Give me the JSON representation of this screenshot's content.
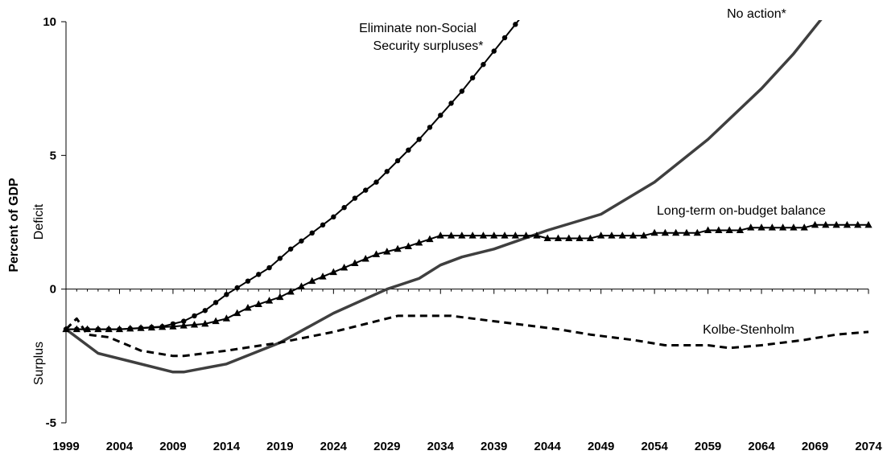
{
  "chart_data": {
    "type": "line",
    "ylabel": "Percent of GDP",
    "side_labels": {
      "upper": "Deficit",
      "lower": "Surplus"
    },
    "xlim": [
      1999,
      2074
    ],
    "ylim": [
      -5,
      10
    ],
    "x_ticks": [
      "1999",
      "2004",
      "2009",
      "2014",
      "2019",
      "2024",
      "2029",
      "2034",
      "2039",
      "2044",
      "2049",
      "2054",
      "2059",
      "2064",
      "2069",
      "2074"
    ],
    "y_ticks": [
      {
        "value": 10,
        "label": "10"
      },
      {
        "value": 5,
        "label": "5"
      },
      {
        "value": 0,
        "label": "0"
      },
      {
        "value": -5,
        "label": "-5"
      }
    ],
    "grid": false,
    "series": [
      {
        "name": "Eliminate non-Social Security surpluses*",
        "label_lines": [
          "Eliminate non-Social",
          "Security surpluses*"
        ],
        "style": "solid-circles",
        "color": "#000000",
        "points": [
          [
            1999,
            -1.5
          ],
          [
            2004,
            -1.5
          ],
          [
            2008,
            -1.4
          ],
          [
            2010,
            -1.2
          ],
          [
            2012,
            -0.8
          ],
          [
            2014,
            -0.2
          ],
          [
            2016,
            0.3
          ],
          [
            2018,
            0.8
          ],
          [
            2020,
            1.5
          ],
          [
            2022,
            2.1
          ],
          [
            2024,
            2.7
          ],
          [
            2026,
            3.4
          ],
          [
            2028,
            4.0
          ],
          [
            2030,
            4.8
          ],
          [
            2032,
            5.6
          ],
          [
            2034,
            6.5
          ],
          [
            2036,
            7.4
          ],
          [
            2038,
            8.4
          ],
          [
            2040,
            9.4
          ],
          [
            2042,
            10.4
          ]
        ]
      },
      {
        "name": "No action*",
        "style": "solid-gray",
        "color": "#3f3f3f",
        "points": [
          [
            1999,
            -1.5
          ],
          [
            2002,
            -2.4
          ],
          [
            2005,
            -2.7
          ],
          [
            2009,
            -3.1
          ],
          [
            2010,
            -3.1
          ],
          [
            2014,
            -2.8
          ],
          [
            2019,
            -2.0
          ],
          [
            2024,
            -0.9
          ],
          [
            2029,
            0.0
          ],
          [
            2032,
            0.4
          ],
          [
            2034,
            0.9
          ],
          [
            2036,
            1.2
          ],
          [
            2039,
            1.5
          ],
          [
            2044,
            2.2
          ],
          [
            2049,
            2.8
          ],
          [
            2054,
            4.0
          ],
          [
            2059,
            5.6
          ],
          [
            2064,
            7.5
          ],
          [
            2067,
            8.8
          ],
          [
            2070,
            10.3
          ]
        ]
      },
      {
        "name": "Long-term on-budget balance",
        "style": "solid-triangles",
        "color": "#000000",
        "points": [
          [
            1999,
            -1.5
          ],
          [
            2004,
            -1.5
          ],
          [
            2009,
            -1.4
          ],
          [
            2012,
            -1.3
          ],
          [
            2014,
            -1.1
          ],
          [
            2016,
            -0.7
          ],
          [
            2019,
            -0.3
          ],
          [
            2022,
            0.3
          ],
          [
            2025,
            0.8
          ],
          [
            2028,
            1.3
          ],
          [
            2031,
            1.6
          ],
          [
            2034,
            2.0
          ],
          [
            2038,
            2.0
          ],
          [
            2043,
            2.0
          ],
          [
            2044,
            1.9
          ],
          [
            2048,
            1.9
          ],
          [
            2049,
            2.0
          ],
          [
            2053,
            2.0
          ],
          [
            2054,
            2.1
          ],
          [
            2058,
            2.1
          ],
          [
            2059,
            2.2
          ],
          [
            2062,
            2.2
          ],
          [
            2063,
            2.3
          ],
          [
            2068,
            2.3
          ],
          [
            2069,
            2.4
          ],
          [
            2074,
            2.4
          ]
        ]
      },
      {
        "name": "Kolbe-Stenholm",
        "style": "dashed",
        "color": "#000000",
        "points": [
          [
            1999,
            -1.5
          ],
          [
            2000,
            -1.1
          ],
          [
            2001,
            -1.7
          ],
          [
            2003,
            -1.8
          ],
          [
            2006,
            -2.3
          ],
          [
            2009,
            -2.5
          ],
          [
            2010,
            -2.5
          ],
          [
            2014,
            -2.3
          ],
          [
            2019,
            -2.0
          ],
          [
            2024,
            -1.6
          ],
          [
            2028,
            -1.2
          ],
          [
            2030,
            -1.0
          ],
          [
            2035,
            -1.0
          ],
          [
            2039,
            -1.2
          ],
          [
            2041,
            -1.3
          ],
          [
            2045,
            -1.5
          ],
          [
            2048,
            -1.7
          ],
          [
            2052,
            -1.9
          ],
          [
            2055,
            -2.1
          ],
          [
            2059,
            -2.1
          ],
          [
            2061,
            -2.2
          ],
          [
            2064,
            -2.1
          ],
          [
            2068,
            -1.9
          ],
          [
            2071,
            -1.7
          ],
          [
            2074,
            -1.6
          ]
        ]
      }
    ]
  }
}
